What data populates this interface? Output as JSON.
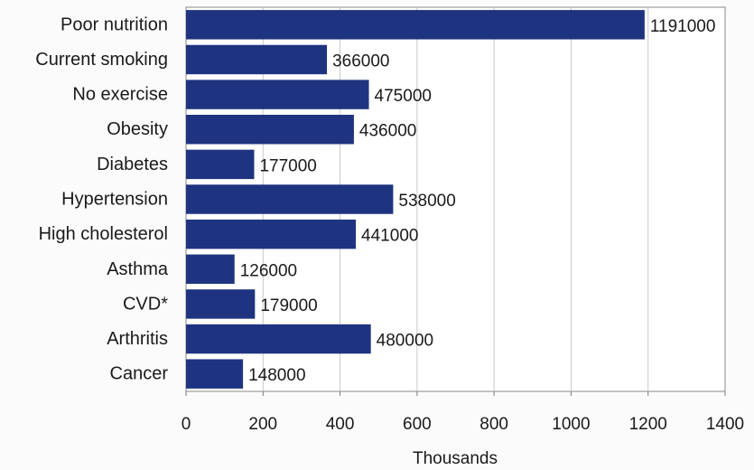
{
  "chart_data": {
    "type": "bar",
    "orientation": "horizontal",
    "categories": [
      "Poor nutrition",
      "Current smoking",
      "No exercise",
      "Obesity",
      "Diabetes",
      "Hypertension",
      "High cholesterol",
      "Asthma",
      "CVD*",
      "Arthritis",
      "Cancer"
    ],
    "values": [
      1191000,
      366000,
      475000,
      436000,
      177000,
      538000,
      441000,
      126000,
      179000,
      480000,
      148000
    ],
    "value_labels": [
      "1191000",
      "366000",
      "475000",
      "436000",
      "177000",
      "538000",
      "441000",
      "126000",
      "179000",
      "480000",
      "148000"
    ],
    "xlabel": "Thousands",
    "ylabel": "",
    "xlim": [
      0,
      1400
    ],
    "x_scale_divisor": 1000,
    "xticks": [
      "0",
      "200",
      "400",
      "600",
      "800",
      "1000",
      "1200",
      "1400"
    ],
    "grid": true,
    "legend": "none",
    "colors": {
      "bar": "#1f3480",
      "grid": "#c9c9c9",
      "axis": "#7a7a7a"
    }
  }
}
